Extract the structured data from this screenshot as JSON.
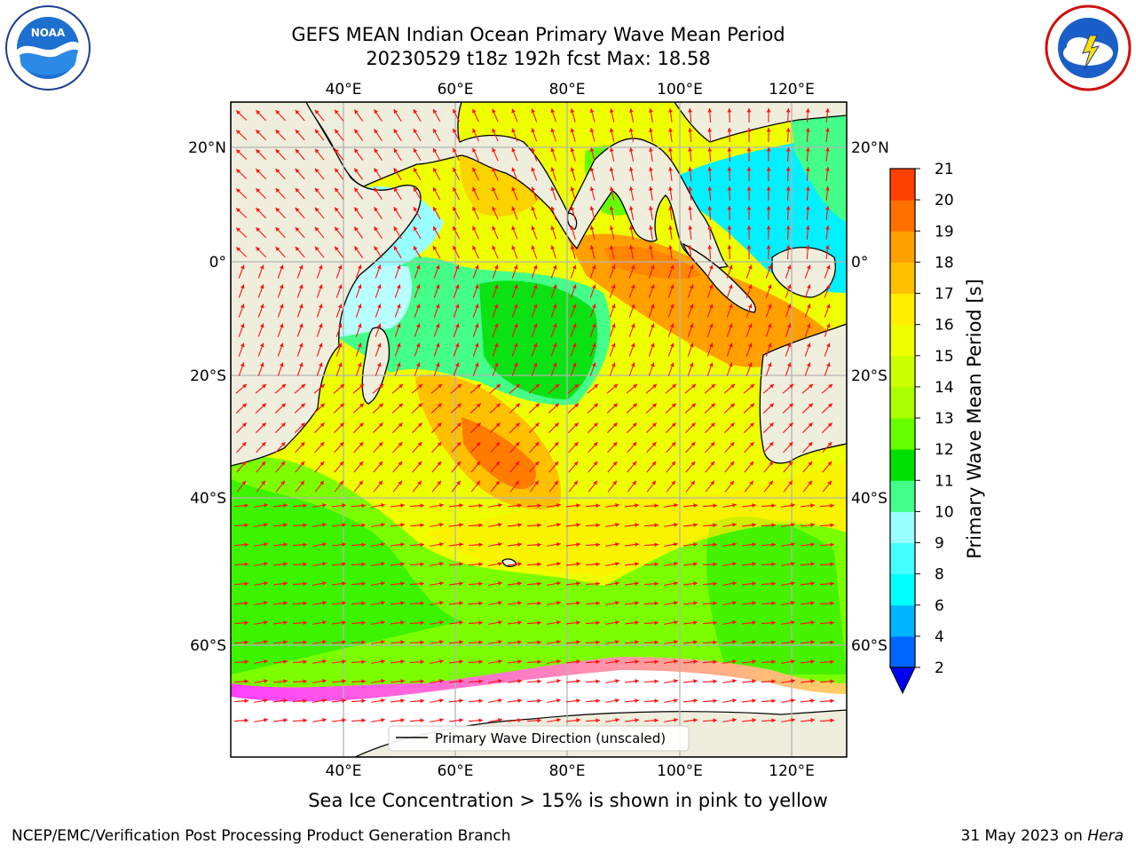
{
  "title_line1": "GEFS MEAN Indian Ocean Primary Wave Mean Period",
  "title_line2": "20230529 t18z 192h fcst   Max: 18.58",
  "lon_labels": [
    "40°E",
    "60°E",
    "80°E",
    "100°E",
    "120°E"
  ],
  "lat_labels": [
    "20°N",
    "0°",
    "20°S",
    "40°S",
    "60°S"
  ],
  "legend_label": "Primary Wave Direction (unscaled)",
  "colorbar": {
    "label": "Primary Wave Mean Period [s]",
    "ticks": [
      "2",
      "4",
      "6",
      "8",
      "9",
      "10",
      "11",
      "12",
      "13",
      "14",
      "15",
      "16",
      "17",
      "18",
      "19",
      "20",
      "21"
    ],
    "colors": [
      "#0066ff",
      "#00b4ff",
      "#00ffff",
      "#44ffff",
      "#99ffff",
      "#44ff88",
      "#00e000",
      "#66ff00",
      "#aaff00",
      "#ccff00",
      "#eeff00",
      "#ffee00",
      "#ffc000",
      "#ffa000",
      "#ff7000",
      "#ff4000",
      "#ff0000"
    ],
    "extend_color": "#0000ee"
  },
  "caption": "Sea Ice Concentration > 15% is shown in pink to yellow",
  "footer_left": "NCEP/EMC/Verification Post Processing Product Generation Branch",
  "footer_right_date": "31 May 2023 on ",
  "footer_right_host": "Hera",
  "logos": {
    "left": "NOAA",
    "right": "NATIONAL WEATHER SERVICE"
  },
  "colors": {
    "arrow": "#ff1010",
    "land": "#efeedd",
    "ice": "#ffffff",
    "grid": "#b4b4b4"
  }
}
